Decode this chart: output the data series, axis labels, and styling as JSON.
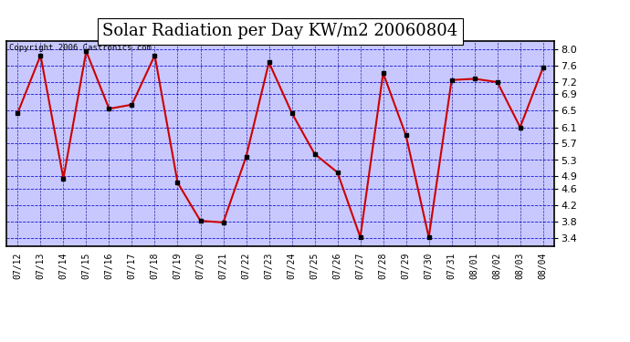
{
  "title": "Solar Radiation per Day KW/m2 20060804",
  "copyright": "Copyright 2006 Castronics.com",
  "dates": [
    "07/12",
    "07/13",
    "07/14",
    "07/15",
    "07/16",
    "07/17",
    "07/18",
    "07/19",
    "07/20",
    "07/21",
    "07/22",
    "07/23",
    "07/24",
    "07/25",
    "07/26",
    "07/27",
    "07/28",
    "07/29",
    "07/30",
    "07/31",
    "08/01",
    "08/02",
    "08/03",
    "08/04"
  ],
  "values": [
    6.45,
    7.85,
    4.85,
    7.95,
    6.55,
    6.65,
    7.85,
    4.75,
    3.82,
    3.78,
    5.38,
    7.68,
    6.45,
    5.45,
    5.0,
    3.42,
    7.42,
    5.9,
    3.42,
    7.25,
    7.28,
    7.2,
    6.1,
    7.55
  ],
  "line_color": "#cc0000",
  "marker_color": "#000000",
  "fig_bg_color": "#ffffff",
  "plot_bg_color": "#c8c8ff",
  "grid_color_h": "#0000cc",
  "grid_color_v": "#000088",
  "title_fontsize": 13,
  "copyright_fontsize": 6.5,
  "ylim": [
    3.2,
    8.2
  ],
  "yticks": [
    3.4,
    3.8,
    4.2,
    4.6,
    4.9,
    5.3,
    5.7,
    6.1,
    6.5,
    6.9,
    7.2,
    7.6,
    8.0
  ]
}
